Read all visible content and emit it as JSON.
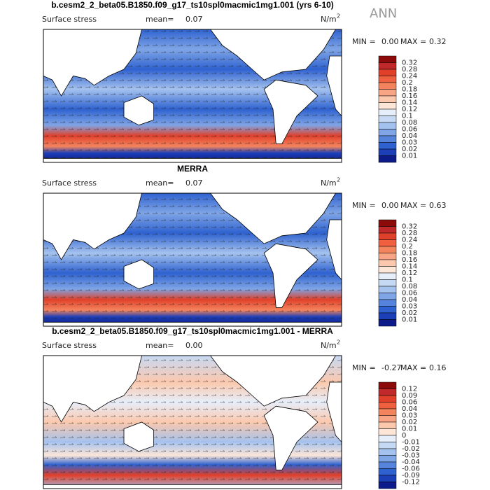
{
  "header": {
    "label": "ANN"
  },
  "panels": [
    {
      "title": "b.cesm2_2_beta05.B1850.f09_g17_ts10spl0macmic1mg1.001 (yrs 6-10)",
      "variable": "Surface stress",
      "mean_label": "mean=",
      "mean": "0.07",
      "units": "N/m",
      "units_exponent": "2",
      "min_label": "MIN =",
      "min": "0.00",
      "max_label": "MAX =",
      "max": "0.32",
      "colorbar": {
        "labels": [
          "0.32",
          "0.28",
          "0.24",
          "0.2",
          "0.18",
          "0.16",
          "0.14",
          "0.12",
          "0.1",
          "0.08",
          "0.06",
          "0.04",
          "0.03",
          "0.02",
          "0.01"
        ],
        "colors": [
          "#8c0a0a",
          "#c0282a",
          "#e0402a",
          "#ee6040",
          "#f4845e",
          "#f8a585",
          "#fbc8ad",
          "#fde6d8",
          "#e6eefa",
          "#c6d9f4",
          "#a4c2ee",
          "#7fa5e6",
          "#5684dc",
          "#2f62d0",
          "#1c3fb8",
          "#0c1a8a"
        ]
      }
    },
    {
      "title": "MERRA",
      "variable": "Surface stress",
      "mean_label": "mean=",
      "mean": "0.07",
      "units": "N/m",
      "units_exponent": "2",
      "min_label": "MIN =",
      "min": "0.00",
      "max_label": "MAX =",
      "max": "0.63",
      "colorbar": {
        "labels": [
          "0.32",
          "0.28",
          "0.24",
          "0.2",
          "0.18",
          "0.16",
          "0.14",
          "0.12",
          "0.1",
          "0.08",
          "0.06",
          "0.04",
          "0.03",
          "0.02",
          "0.01"
        ],
        "colors": [
          "#8c0a0a",
          "#c0282a",
          "#e0402a",
          "#ee6040",
          "#f4845e",
          "#f8a585",
          "#fbc8ad",
          "#fde6d8",
          "#e6eefa",
          "#c6d9f4",
          "#a4c2ee",
          "#7fa5e6",
          "#5684dc",
          "#2f62d0",
          "#1c3fb8",
          "#0c1a8a"
        ]
      }
    },
    {
      "title": "b.cesm2_2_beta05.B1850.f09_g17_ts10spl0macmic1mg1.001 - MERRA",
      "variable": "Surface stress",
      "mean_label": "mean=",
      "mean": "0.00",
      "units": "N/m",
      "units_exponent": "2",
      "min_label": "MIN =",
      "min": "-0.27",
      "max_label": "MAX =",
      "max": "0.16",
      "colorbar": {
        "labels": [
          "0.12",
          "0.09",
          "0.06",
          "0.04",
          "0.03",
          "0.02",
          "0.01",
          "0",
          "-0.01",
          "-0.02",
          "-0.03",
          "-0.04",
          "-0.06",
          "-0.09",
          "-0.12"
        ],
        "colors": [
          "#8c0a0a",
          "#c0282a",
          "#e0402a",
          "#ee6040",
          "#f4845e",
          "#f8a585",
          "#fbc8ad",
          "#fde6d8",
          "#e6eefa",
          "#c6d9f4",
          "#a4c2ee",
          "#7fa5e6",
          "#5684dc",
          "#2f62d0",
          "#1c3fb8",
          "#0c1a8a"
        ]
      }
    }
  ]
}
